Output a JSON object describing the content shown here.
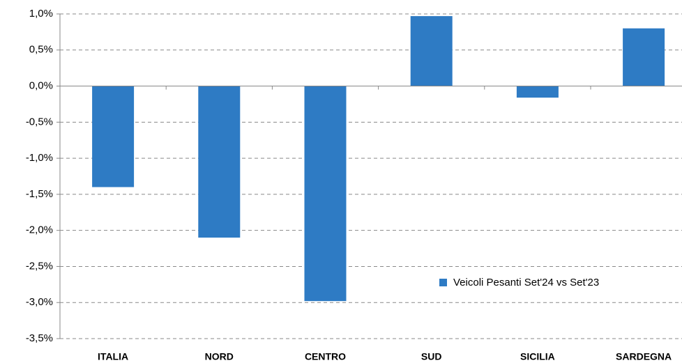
{
  "chart_data": {
    "type": "bar",
    "categories": [
      "ITALIA",
      "NORD",
      "CENTRO",
      "SUD",
      "SICILIA",
      "SARDEGNA"
    ],
    "series": [
      {
        "name": "Veicoli Pesanti Set'24 vs Set'23",
        "color": "#2e7bc4",
        "values": [
          -1.4,
          -2.1,
          -2.98,
          0.97,
          -0.16,
          0.8
        ]
      }
    ],
    "ylim": [
      -3.5,
      1.0
    ],
    "yticks": [
      {
        "value": -3.5,
        "label": "-3,5%"
      },
      {
        "value": -3.0,
        "label": "-3,0%"
      },
      {
        "value": -2.5,
        "label": "-2,5%"
      },
      {
        "value": -2.0,
        "label": "-2,0%"
      },
      {
        "value": -1.5,
        "label": "-1,5%"
      },
      {
        "value": -1.0,
        "label": "-1,0%"
      },
      {
        "value": -0.5,
        "label": "-0,5%"
      },
      {
        "value": 0.0,
        "label": "0,0%"
      },
      {
        "value": 0.5,
        "label": "0,5%"
      },
      {
        "value": 1.0,
        "label": "1,0%"
      }
    ],
    "grid": true,
    "legend": "lower right"
  }
}
